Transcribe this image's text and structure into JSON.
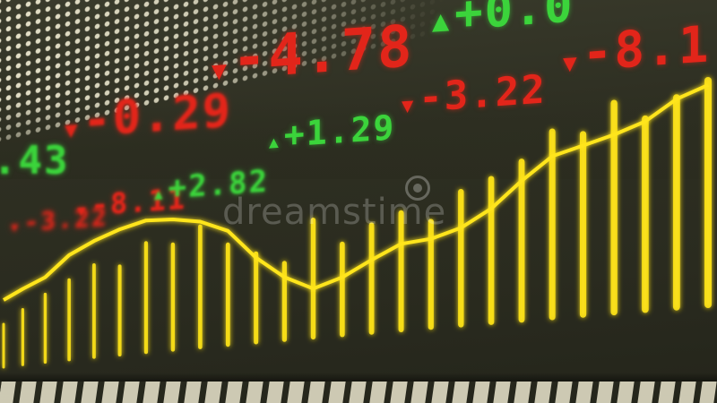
{
  "scene": {
    "description_free": true,
    "background_color": "#2b2c1f",
    "up_color": "#3bd43b",
    "down_color": "#e2251a",
    "chart_color": "#ffe51a"
  },
  "tickers": [
    {
      "direction": "up",
      "arrow": "",
      "value": ".43",
      "row": "middle"
    },
    {
      "direction": "down",
      "arrow": "▼",
      "value": "-0.29",
      "row": "middle"
    },
    {
      "direction": "down",
      "arrow": "▼",
      "value": "-4.78",
      "row": "top"
    },
    {
      "direction": "up",
      "arrow": "▲",
      "value": "+0.0",
      "row": "top"
    },
    {
      "direction": "up",
      "arrow": "▲",
      "value": "+1.29",
      "row": "middle"
    },
    {
      "direction": "down",
      "arrow": "▼",
      "value": "-3.22",
      "row": "middle"
    },
    {
      "direction": "down",
      "arrow": "▼",
      "value": "-8.1",
      "row": "top"
    },
    {
      "direction": "down",
      "arrow": "▼",
      "value": "-3.22",
      "row": "lower"
    },
    {
      "direction": "down",
      "arrow": "▼",
      "value": "-8.11",
      "row": "lower"
    },
    {
      "direction": "up",
      "arrow": "▲",
      "value": "+2.82",
      "row": "lower"
    }
  ],
  "watermark": "dreamstime",
  "chart_data": {
    "type": "line",
    "series": [
      {
        "values": [
          0.1,
          0.16,
          0.22,
          0.35,
          0.42,
          0.47,
          0.5,
          0.48,
          0.44,
          0.36,
          0.18,
          0.05,
          -0.03,
          0.02,
          0.1,
          0.17,
          0.18,
          0.22,
          0.3,
          0.42,
          0.52,
          0.55,
          0.58,
          0.62,
          0.7,
          0.74
        ]
      }
    ],
    "bars": [
      0.32,
      0.4,
      0.48,
      0.55,
      0.62,
      0.58,
      0.7,
      0.66,
      0.74,
      0.6,
      0.52,
      0.44,
      0.66,
      0.5,
      0.58,
      0.62,
      0.55,
      0.68,
      0.72,
      0.78,
      0.9,
      0.86,
      0.98,
      0.88,
      0.95,
      1.0
    ]
  }
}
